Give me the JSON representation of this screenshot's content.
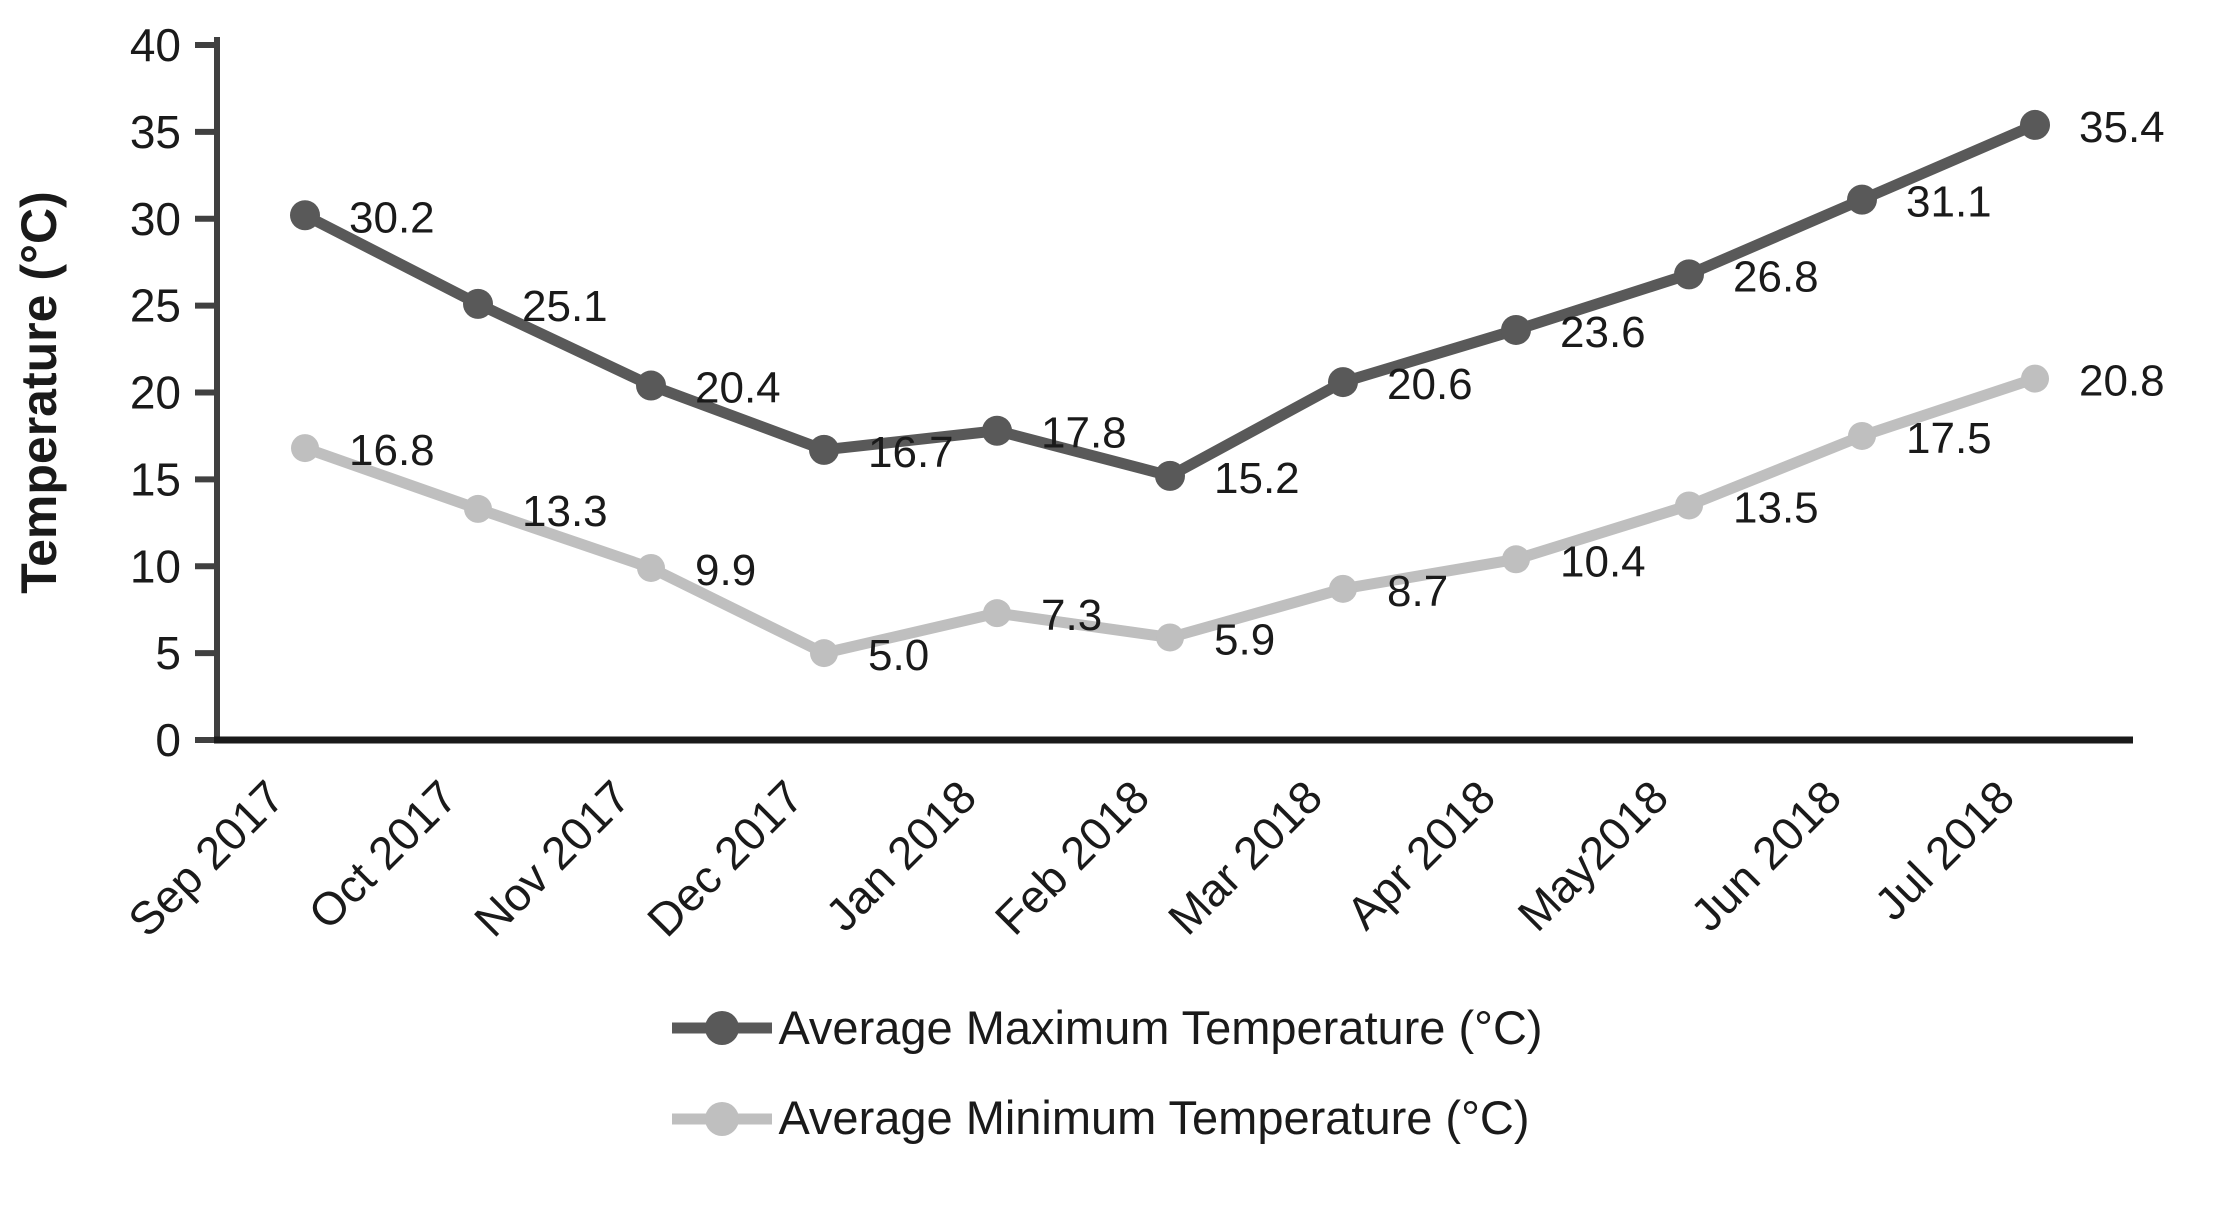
{
  "chart_data": {
    "type": "line",
    "title": "",
    "xlabel": "",
    "ylabel": "Temperature (°C)",
    "ylim": [
      0,
      40
    ],
    "yticks": [
      0,
      5,
      10,
      15,
      20,
      25,
      30,
      35,
      40
    ],
    "categories": [
      "Sep 2017",
      "Oct 2017",
      "Nov 2017",
      "Dec 2017",
      "Jan 2018",
      "Feb 2018",
      "Mar 2018",
      "Apr 2018",
      "May2018",
      "Jun 2018",
      "Jul 2018"
    ],
    "series": [
      {
        "name": "Average Maximum Temperature (°C)",
        "color": "#595959",
        "marker": "circle",
        "values": [
          30.2,
          25.1,
          20.4,
          16.7,
          17.8,
          15.2,
          20.6,
          23.6,
          26.8,
          31.1,
          35.4
        ]
      },
      {
        "name": "Average Minimum Temperature (°C)",
        "color": "#bfbfbf",
        "marker": "circle",
        "values": [
          16.8,
          13.3,
          9.9,
          5.0,
          7.3,
          5.9,
          8.7,
          10.4,
          13.5,
          17.5,
          20.8
        ]
      }
    ],
    "legend_position": "bottom",
    "grid": false,
    "data_labels": true
  },
  "style": {
    "background": "#ffffff",
    "axis_color": "#1a1a1a",
    "tick_color": "#404040",
    "text_color": "#1a1a1a"
  }
}
